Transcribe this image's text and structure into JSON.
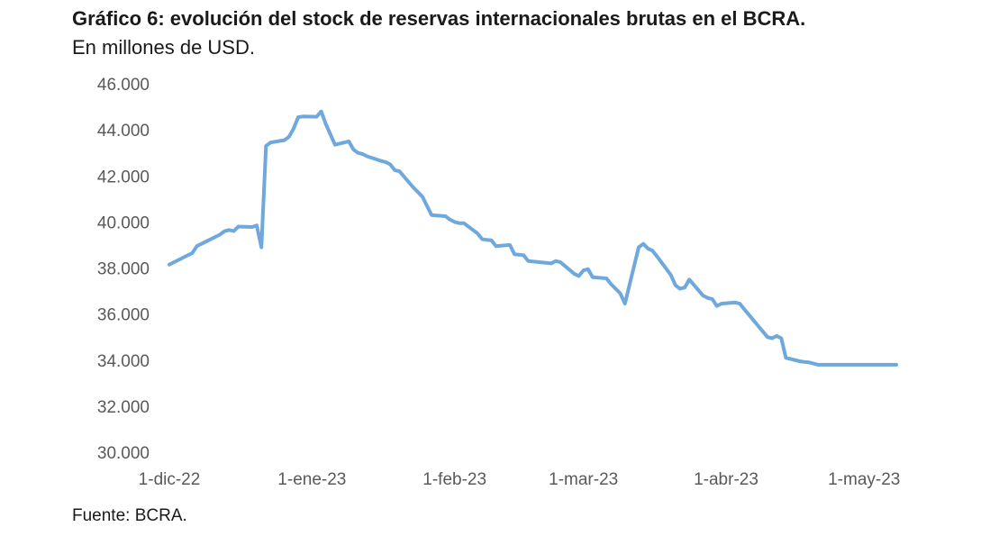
{
  "header": {
    "title": "Gráfico 6: evolución del stock de reservas internacionales brutas en el BCRA.",
    "subtitle": "En millones de USD."
  },
  "footer": {
    "source": "Fuente: BCRA."
  },
  "chart_data": {
    "type": "line",
    "title": "Gráfico 6: evolución del stock de reservas internacionales brutas en el BCRA.",
    "subtitle": "En millones de USD.",
    "xlabel": "",
    "ylabel": "",
    "ylim": [
      30000,
      46000
    ],
    "yticks": [
      30000,
      32000,
      34000,
      36000,
      38000,
      40000,
      42000,
      44000,
      46000
    ],
    "ytick_labels": [
      "30.000",
      "32.000",
      "34.000",
      "36.000",
      "38.000",
      "40.000",
      "42.000",
      "44.000",
      "46.000"
    ],
    "xlim": [
      "2022-12-01",
      "2023-05-08"
    ],
    "xticks": [
      "2022-12-01",
      "2023-01-01",
      "2023-02-01",
      "2023-03-01",
      "2023-04-01",
      "2023-05-01"
    ],
    "xtick_labels": [
      "1-dic-22",
      "1-ene-23",
      "1-feb-23",
      "1-mar-23",
      "1-abr-23",
      "1-may-23"
    ],
    "grid": false,
    "legend": "none",
    "line_color": "#6fa8dc",
    "series": [
      {
        "x": [
          "2022-12-01",
          "2022-12-02",
          "2022-12-05",
          "2022-12-06",
          "2022-12-07",
          "2022-12-09",
          "2022-12-12",
          "2022-12-13",
          "2022-12-14",
          "2022-12-15",
          "2022-12-16",
          "2022-12-19",
          "2022-12-20",
          "2022-12-21",
          "2022-12-22",
          "2022-12-23",
          "2022-12-26",
          "2022-12-27",
          "2022-12-28",
          "2022-12-29",
          "2022-12-30",
          "2023-01-02",
          "2023-01-03",
          "2023-01-04",
          "2023-01-05",
          "2023-01-06",
          "2023-01-09",
          "2023-01-10",
          "2023-01-11",
          "2023-01-12",
          "2023-01-13",
          "2023-01-16",
          "2023-01-17",
          "2023-01-18",
          "2023-01-19",
          "2023-01-20",
          "2023-01-23",
          "2023-01-24",
          "2023-01-25",
          "2023-01-26",
          "2023-01-27",
          "2023-01-30",
          "2023-01-31",
          "2023-02-01",
          "2023-02-02",
          "2023-02-03",
          "2023-02-06",
          "2023-02-07",
          "2023-02-08",
          "2023-02-09",
          "2023-02-10",
          "2023-02-13",
          "2023-02-14",
          "2023-02-15",
          "2023-02-16",
          "2023-02-17",
          "2023-02-22",
          "2023-02-23",
          "2023-02-24",
          "2023-02-27",
          "2023-02-28",
          "2023-03-01",
          "2023-03-02",
          "2023-03-03",
          "2023-03-06",
          "2023-03-07",
          "2023-03-08",
          "2023-03-09",
          "2023-03-10",
          "2023-03-13",
          "2023-03-14",
          "2023-03-15",
          "2023-03-16",
          "2023-03-17",
          "2023-03-20",
          "2023-03-21",
          "2023-03-22",
          "2023-03-23",
          "2023-03-24",
          "2023-03-27",
          "2023-03-28",
          "2023-03-29",
          "2023-03-30",
          "2023-03-31",
          "2023-04-03",
          "2023-04-04",
          "2023-04-05",
          "2023-04-10",
          "2023-04-11",
          "2023-04-12",
          "2023-04-13",
          "2023-04-14",
          "2023-04-17",
          "2023-04-18",
          "2023-04-19",
          "2023-04-20",
          "2023-04-21",
          "2023-04-24",
          "2023-04-25",
          "2023-04-26",
          "2023-04-27",
          "2023-04-28",
          "2023-05-02",
          "2023-05-03",
          "2023-05-04",
          "2023-05-05",
          "2023-05-08"
        ],
        "y": [
          38150,
          38250,
          38550,
          38650,
          38950,
          39150,
          39450,
          39600,
          39650,
          39600,
          39800,
          39780,
          39850,
          38900,
          43300,
          43450,
          43550,
          43700,
          44050,
          44550,
          44580,
          44570,
          44800,
          44250,
          43800,
          43350,
          43500,
          43150,
          43000,
          42950,
          42850,
          42650,
          42600,
          42500,
          42250,
          42200,
          41500,
          41300,
          41100,
          40700,
          40300,
          40250,
          40100,
          40000,
          39950,
          39950,
          39500,
          39250,
          39220,
          39200,
          38950,
          39000,
          38600,
          38580,
          38550,
          38300,
          38200,
          38300,
          38250,
          37750,
          37650,
          37900,
          37950,
          37600,
          37550,
          37300,
          37100,
          36900,
          36450,
          38900,
          39050,
          38850,
          38750,
          38500,
          37700,
          37250,
          37100,
          37150,
          37500,
          36800,
          36700,
          36650,
          36350,
          36450,
          36500,
          36450,
          36200,
          35000,
          34950,
          35050,
          34950,
          34100,
          33950,
          33920,
          33900,
          33850,
          33800,
          33800,
          33800,
          33800,
          33800,
          33800,
          33800,
          33800,
          33800,
          33800,
          33800
        ]
      }
    ]
  }
}
